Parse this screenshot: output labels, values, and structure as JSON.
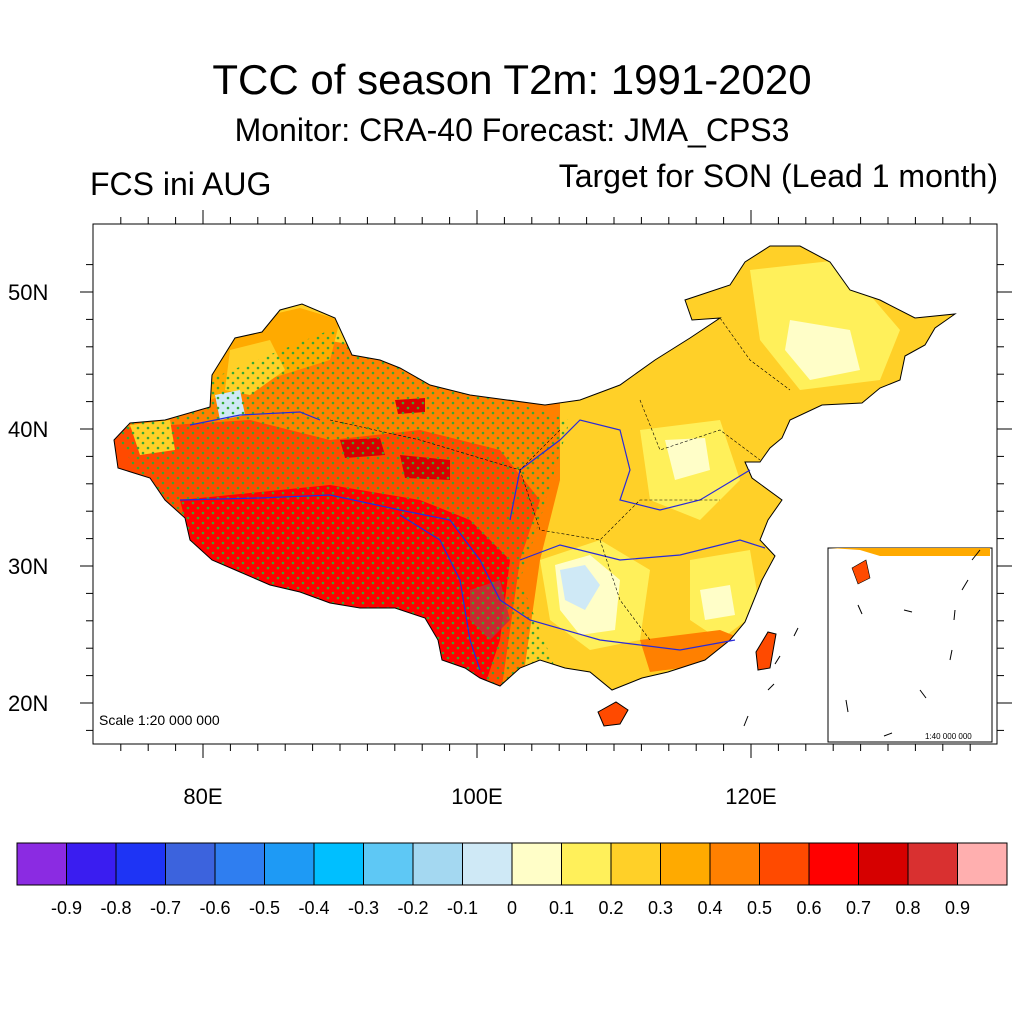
{
  "title": "TCC of season T2m: 1991-2020",
  "subtitle": "Monitor: CRA-40   Forecast: JMA_CPS3",
  "left_label": "FCS ini AUG",
  "right_label": "Target for SON (Lead 1 month)",
  "scale_main": "Scale 1:20 000 000",
  "scale_inset": "1:40 000 000",
  "lat_labels": [
    {
      "value": 50,
      "text": "50N"
    },
    {
      "value": 40,
      "text": "40N"
    },
    {
      "value": 30,
      "text": "30N"
    },
    {
      "value": 20,
      "text": "20N"
    }
  ],
  "lon_labels": [
    {
      "value": 80,
      "text": "80E"
    },
    {
      "value": 100,
      "text": "100E"
    },
    {
      "value": 120,
      "text": "120E"
    }
  ],
  "colorbar": {
    "colors": [
      "#8b2be2",
      "#3a1df0",
      "#1e34f5",
      "#3c63dd",
      "#2f7ef0",
      "#1e9af5",
      "#00bfff",
      "#5ec8f5",
      "#a4d8f1",
      "#cfe9f6",
      "#fffec8",
      "#fff05a",
      "#ffd028",
      "#ffaa00",
      "#ff8000",
      "#ff4a00",
      "#ff0000",
      "#d60000",
      "#d93030",
      "#ffafaf"
    ],
    "labels": [
      "-0.9",
      "-0.8",
      "-0.7",
      "-0.6",
      "-0.5",
      "-0.4",
      "-0.3",
      "-0.2",
      "-0.1",
      "0",
      "0.1",
      "0.2",
      "0.3",
      "0.4",
      "0.5",
      "0.6",
      "0.7",
      "0.8",
      "0.9"
    ]
  },
  "colors": {
    "river": "#2a2ad8",
    "stipple": "#33aa33",
    "border": "#000000"
  }
}
